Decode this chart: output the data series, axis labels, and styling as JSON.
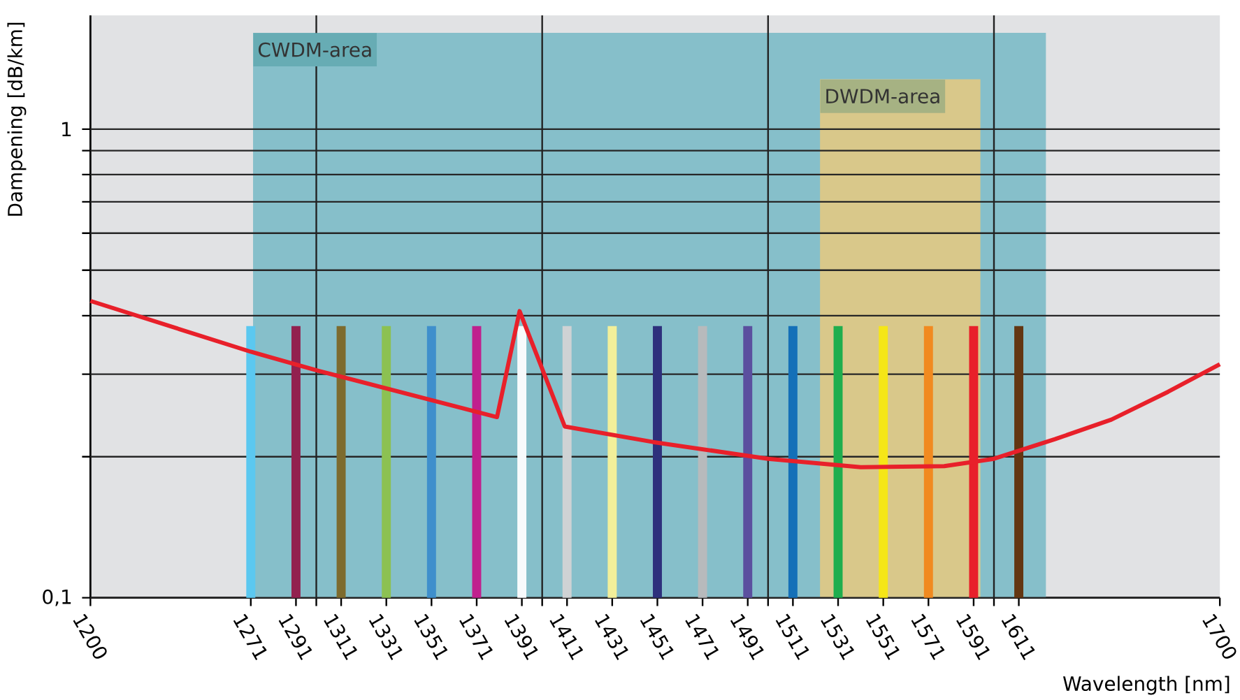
{
  "chart_data": {
    "type": "bar",
    "xlabel": "Wavelength [nm]",
    "ylabel": "Dampening [dB/km]",
    "log": "y",
    "grid": "y",
    "xlim": [
      1200,
      1700
    ],
    "ylim": [
      0.1,
      1.75
    ],
    "xticks": [
      1200,
      1271,
      1291,
      {
        "value": 1300,
        "label": null
      },
      1311,
      1331,
      1351,
      1371,
      1391,
      {
        "value": 1400,
        "label": null
      },
      1411,
      1431,
      1451,
      1471,
      1491,
      {
        "value": 1500,
        "label": null
      },
      1511,
      1531,
      1551,
      1571,
      1591,
      {
        "value": 1600,
        "label": null
      },
      1611,
      1700
    ],
    "yticks": [
      {
        "value": 0.1,
        "label": "0,1"
      },
      {
        "value": 0.2,
        "label": null
      },
      {
        "value": 0.3,
        "label": null
      },
      {
        "value": 0.4,
        "label": null
      },
      {
        "value": 0.5,
        "label": null
      },
      {
        "value": 0.6,
        "label": null
      },
      {
        "value": 0.7,
        "label": null
      },
      {
        "value": 0.8,
        "label": null
      },
      {
        "value": 0.9,
        "label": null
      },
      1
    ],
    "ref_lines": [
      {
        "axis": "x",
        "value": 1300,
        "color": "#222222"
      },
      {
        "axis": "x",
        "value": 1400,
        "color": "#222222"
      },
      {
        "axis": "x",
        "value": 1500,
        "color": "#222222"
      },
      {
        "axis": "x",
        "value": 1600,
        "color": "#222222"
      }
    ],
    "bands": [
      {
        "axis": "x",
        "from": 1272,
        "to": 1623,
        "label": "CWDM-area",
        "color": "#86bfca"
      },
      {
        "axis": "x",
        "from": 1523,
        "to": 1594,
        "label": "DWDM-area",
        "color": "#d9c88a"
      }
    ],
    "series": [
      {
        "x": [
          1271,
          1291,
          1311,
          1331,
          1351,
          1371,
          1391,
          1411,
          1431,
          1451,
          1471,
          1491,
          1511,
          1531,
          1551,
          1571,
          1591,
          1611
        ],
        "values": [
          0.38,
          0.38,
          0.38,
          0.38,
          0.38,
          0.38,
          0.38,
          0.38,
          0.38,
          0.38,
          0.38,
          0.38,
          0.38,
          0.38,
          0.38,
          0.38,
          0.38,
          0.38
        ],
        "colors": [
          "#5bc8f0",
          "#92214f",
          "#7d6b2e",
          "#8cc152",
          "#3f8fcc",
          "#c0208e",
          "#f7fafc",
          "#cfd2d4",
          "#f2ef9a",
          "#2e307c",
          "#b7babc",
          "#5b4f9f",
          "#1470b8",
          "#1fae4e",
          "#f5e617",
          "#f18a20",
          "#e8202a",
          "#633612"
        ]
      },
      {
        "type": "line",
        "color": "#e8202a",
        "x": [
          1200,
          1271,
          1301,
          1380,
          1390,
          1410,
          1449,
          1500,
          1541,
          1578,
          1600,
          1627,
          1652,
          1677,
          1700
        ],
        "values": [
          0.43,
          0.335,
          0.305,
          0.243,
          0.409,
          0.232,
          0.215,
          0.198,
          0.19,
          0.191,
          0.198,
          0.218,
          0.24,
          0.275,
          0.315
        ]
      }
    ]
  }
}
